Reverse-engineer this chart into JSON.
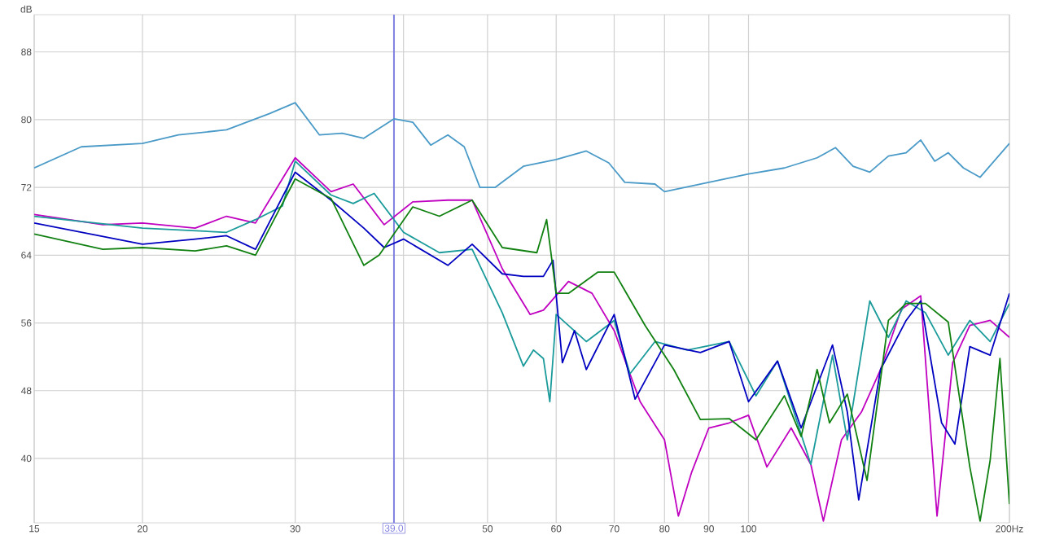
{
  "chart_data": {
    "type": "line",
    "ylabel": "dB",
    "log": "x",
    "grid": true,
    "xlim": [
      15,
      200
    ],
    "ylim": [
      32.4,
      92.4
    ],
    "xticks": [
      15,
      20,
      30,
      {
        "value": 40,
        "label": null
      },
      50,
      60,
      70,
      80,
      90,
      100,
      {
        "value": 200,
        "label": "200Hz"
      }
    ],
    "yticks": [
      40,
      48,
      56,
      64,
      72,
      80,
      88
    ],
    "ref_lines": [
      {
        "axis": "x",
        "value": 39.0,
        "label": "39.0",
        "color": "#8080e0"
      }
    ],
    "series": [
      {
        "color": "#4a9ac8",
        "x": [
          15,
          17,
          20,
          22,
          25,
          28,
          30,
          32,
          34,
          36,
          39,
          41,
          43,
          45,
          47,
          49,
          51,
          55,
          60,
          65,
          69,
          72,
          78,
          80,
          90,
          100,
          110,
          120,
          126,
          132,
          138,
          145,
          152,
          158,
          164,
          170,
          177,
          185,
          200
        ],
        "values": [
          74.3,
          76.8,
          77.2,
          78.2,
          78.8,
          80.7,
          82.0,
          78.2,
          78.4,
          77.8,
          80.1,
          79.7,
          77.0,
          78.2,
          76.8,
          72.0,
          72.0,
          74.5,
          75.3,
          76.3,
          74.9,
          72.6,
          72.4,
          71.5,
          72.6,
          73.6,
          74.3,
          75.5,
          76.7,
          74.5,
          73.8,
          75.7,
          76.1,
          77.6,
          75.1,
          76.1,
          74.3,
          73.2,
          77.2
        ]
      },
      {
        "color": "#c000c0",
        "x": [
          15,
          18,
          20,
          23,
          25,
          27,
          30,
          33,
          35,
          38,
          41,
          45,
          48,
          52,
          56,
          58,
          62,
          66,
          70,
          75,
          80,
          83,
          86,
          90,
          95,
          100,
          105,
          112,
          118,
          122,
          128,
          135,
          142,
          150,
          158,
          165,
          172,
          180,
          190,
          200
        ],
        "values": [
          68.8,
          67.6,
          67.8,
          67.2,
          68.6,
          67.8,
          75.5,
          71.5,
          72.4,
          67.6,
          70.3,
          70.5,
          70.5,
          62.4,
          57.0,
          57.5,
          60.9,
          59.5,
          55.1,
          46.7,
          42.2,
          33.2,
          38.4,
          43.6,
          44.2,
          45.1,
          39.0,
          43.6,
          39.3,
          32.6,
          42.2,
          45.5,
          50.5,
          57.6,
          59.2,
          33.2,
          51.3,
          55.7,
          56.3,
          54.3
        ]
      },
      {
        "color": "#1a9a9a",
        "x": [
          15,
          20,
          25,
          27,
          29,
          30,
          33,
          35,
          37,
          40,
          44,
          48,
          52,
          55,
          56.5,
          58,
          59,
          60,
          65,
          70,
          73,
          78,
          85,
          95,
          102,
          108,
          118,
          125,
          130,
          138,
          145,
          152,
          160,
          170,
          180,
          190,
          200
        ],
        "values": [
          68.6,
          67.2,
          66.7,
          68.2,
          69.8,
          75.1,
          71.1,
          70.1,
          71.3,
          66.7,
          64.3,
          64.7,
          57.2,
          50.9,
          52.8,
          51.8,
          46.7,
          57.0,
          53.8,
          56.3,
          50.0,
          53.8,
          52.8,
          53.8,
          47.4,
          51.5,
          39.3,
          52.2,
          42.2,
          58.6,
          54.3,
          58.6,
          57.2,
          52.2,
          56.3,
          53.8,
          58.3
        ]
      },
      {
        "color": "#0000c0",
        "x": [
          15,
          20,
          23,
          25,
          27,
          30,
          33,
          36,
          38,
          40,
          45,
          48,
          52,
          55,
          58,
          59.5,
          61,
          63,
          65,
          70,
          74,
          80,
          88,
          95,
          100,
          108,
          115,
          125,
          130,
          134,
          142,
          152,
          158,
          167,
          173,
          180,
          190,
          200
        ],
        "values": [
          67.8,
          65.3,
          65.9,
          66.3,
          64.7,
          73.8,
          70.5,
          67.2,
          64.9,
          65.9,
          62.8,
          65.3,
          61.8,
          61.5,
          61.5,
          63.4,
          51.3,
          55.1,
          50.5,
          57.0,
          47.0,
          53.4,
          52.5,
          53.8,
          46.7,
          51.5,
          43.6,
          53.4,
          45.5,
          35.1,
          50.5,
          56.3,
          58.6,
          44.2,
          41.7,
          53.2,
          52.2,
          59.5
        ]
      },
      {
        "color": "#108010",
        "x": [
          15,
          18,
          20,
          23,
          25,
          27,
          30,
          33,
          36,
          37.5,
          41,
          44,
          48,
          52,
          57,
          58.5,
          60,
          62,
          67,
          70,
          76,
          82,
          88,
          95,
          102,
          110,
          115,
          120,
          124,
          130,
          137,
          145,
          152,
          160,
          170,
          180,
          185,
          190,
          195,
          200
        ],
        "values": [
          66.5,
          64.7,
          64.9,
          64.5,
          65.1,
          64.0,
          73.0,
          70.7,
          62.8,
          64.0,
          69.7,
          68.6,
          70.5,
          64.9,
          64.3,
          68.2,
          59.5,
          59.5,
          62.0,
          62.0,
          55.7,
          50.5,
          44.6,
          44.7,
          42.2,
          47.4,
          42.6,
          50.5,
          44.2,
          47.6,
          37.4,
          56.3,
          58.3,
          58.3,
          56.1,
          39.0,
          32.6,
          39.8,
          51.8,
          34.6
        ]
      }
    ]
  }
}
